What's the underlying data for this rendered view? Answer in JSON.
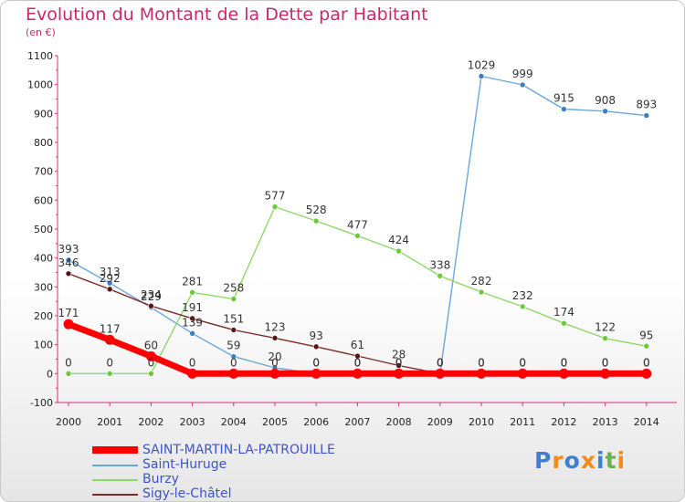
{
  "header": {
    "title": "Evolution du Montant de la Dette par Habitant",
    "unit": "(en €)"
  },
  "logo": {
    "text": "Proxiti",
    "letters": [
      {
        "ch": "P",
        "color": "#3f7fcf"
      },
      {
        "ch": "r",
        "color": "#f28a1c"
      },
      {
        "ch": "o",
        "color": "#3f7fcf"
      },
      {
        "ch": "x",
        "color": "#f28a1c"
      },
      {
        "ch": "i",
        "color": "#3f7fcf"
      },
      {
        "ch": "t",
        "color": "#6ab04c"
      },
      {
        "ch": "i",
        "color": "#f28a1c"
      }
    ]
  },
  "chart_data": {
    "type": "line",
    "title": "Evolution du Montant de la Dette par Habitant",
    "ylabel": "(en €)",
    "xlabel": "",
    "x": [
      2000,
      2001,
      2002,
      2003,
      2004,
      2005,
      2006,
      2007,
      2008,
      2009,
      2010,
      2011,
      2012,
      2013,
      2014
    ],
    "ylim": [
      -100,
      1100
    ],
    "yticks": [
      -100,
      0,
      100,
      200,
      300,
      400,
      500,
      600,
      700,
      800,
      900,
      1000,
      1100
    ],
    "grid": false,
    "legend": "bottom-left",
    "series": [
      {
        "name": "SAINT-MARTIN-LA-PATROUILLE",
        "color": "#ff0000",
        "marker": "#ff0000",
        "thick": true,
        "values": [
          171,
          117,
          60,
          0,
          0,
          0,
          0,
          0,
          0,
          0,
          0,
          0,
          0,
          0,
          0
        ]
      },
      {
        "name": "Saint-Huruge",
        "color": "#6aa6d8",
        "marker": "#3b7fc0",
        "thick": false,
        "values": [
          393,
          313,
          229,
          139,
          59,
          20,
          0,
          0,
          0,
          0,
          1029,
          999,
          915,
          908,
          893
        ]
      },
      {
        "name": "Burzy",
        "color": "#8ed86a",
        "marker": "#6cc83c",
        "thick": false,
        "values": [
          0,
          0,
          0,
          281,
          258,
          577,
          528,
          477,
          424,
          338,
          282,
          232,
          174,
          122,
          95
        ]
      },
      {
        "name": "Sigy-le-Châtel",
        "color": "#7a2a2a",
        "marker": "#5a1414",
        "thick": false,
        "values": [
          346,
          292,
          234,
          191,
          151,
          123,
          93,
          61,
          28,
          0,
          0,
          0,
          0,
          0,
          0
        ]
      }
    ],
    "data_labels": [
      {
        "x": 2000,
        "text": "393"
      },
      {
        "x": 2000,
        "text": "346"
      },
      {
        "x": 2000,
        "text": "171"
      },
      {
        "x": 2000,
        "text": "0"
      },
      {
        "x": 2001,
        "text": "313"
      },
      {
        "x": 2001,
        "text": "292"
      },
      {
        "x": 2001,
        "text": "117"
      },
      {
        "x": 2001,
        "text": "0"
      },
      {
        "x": 2002,
        "text": "234"
      },
      {
        "x": 2002,
        "text": "229"
      },
      {
        "x": 2002,
        "text": "60"
      },
      {
        "x": 2002,
        "text": "0"
      },
      {
        "x": 2003,
        "text": "281"
      },
      {
        "x": 2003,
        "text": "191"
      },
      {
        "x": 2003,
        "text": "139"
      },
      {
        "x": 2003,
        "text": "0"
      },
      {
        "x": 2004,
        "text": "258"
      },
      {
        "x": 2004,
        "text": "151"
      },
      {
        "x": 2004,
        "text": "59"
      },
      {
        "x": 2004,
        "text": "0"
      },
      {
        "x": 2005,
        "text": "577"
      },
      {
        "x": 2005,
        "text": "123"
      },
      {
        "x": 2005,
        "text": "20"
      },
      {
        "x": 2005,
        "text": "0"
      },
      {
        "x": 2006,
        "text": "528"
      },
      {
        "x": 2006,
        "text": "93"
      },
      {
        "x": 2006,
        "text": "0"
      },
      {
        "x": 2006,
        "text": "0"
      },
      {
        "x": 2007,
        "text": "477"
      },
      {
        "x": 2007,
        "text": "61"
      },
      {
        "x": 2007,
        "text": "0"
      },
      {
        "x": 2007,
        "text": "0"
      },
      {
        "x": 2008,
        "text": "424"
      },
      {
        "x": 2008,
        "text": "28"
      },
      {
        "x": 2008,
        "text": "0"
      },
      {
        "x": 2008,
        "text": "0"
      },
      {
        "x": 2009,
        "text": "338"
      },
      {
        "x": 2009,
        "text": "0"
      },
      {
        "x": 2009,
        "text": "0"
      },
      {
        "x": 2009,
        "text": "0"
      },
      {
        "x": 2010,
        "text": "1029"
      },
      {
        "x": 2010,
        "text": "282"
      },
      {
        "x": 2010,
        "text": "0"
      },
      {
        "x": 2010,
        "text": "0"
      },
      {
        "x": 2011,
        "text": "999"
      },
      {
        "x": 2011,
        "text": "232"
      },
      {
        "x": 2011,
        "text": "0"
      },
      {
        "x": 2011,
        "text": "0"
      },
      {
        "x": 2012,
        "text": "915"
      },
      {
        "x": 2012,
        "text": "174"
      },
      {
        "x": 2012,
        "text": "0"
      },
      {
        "x": 2012,
        "text": "0"
      },
      {
        "x": 2013,
        "text": "908"
      },
      {
        "x": 2013,
        "text": "122"
      },
      {
        "x": 2013,
        "text": "0"
      },
      {
        "x": 2013,
        "text": "0"
      },
      {
        "x": 2014,
        "text": "893"
      },
      {
        "x": 2014,
        "text": "95"
      },
      {
        "x": 2014,
        "text": "0"
      },
      {
        "x": 2014,
        "text": "0"
      }
    ]
  }
}
